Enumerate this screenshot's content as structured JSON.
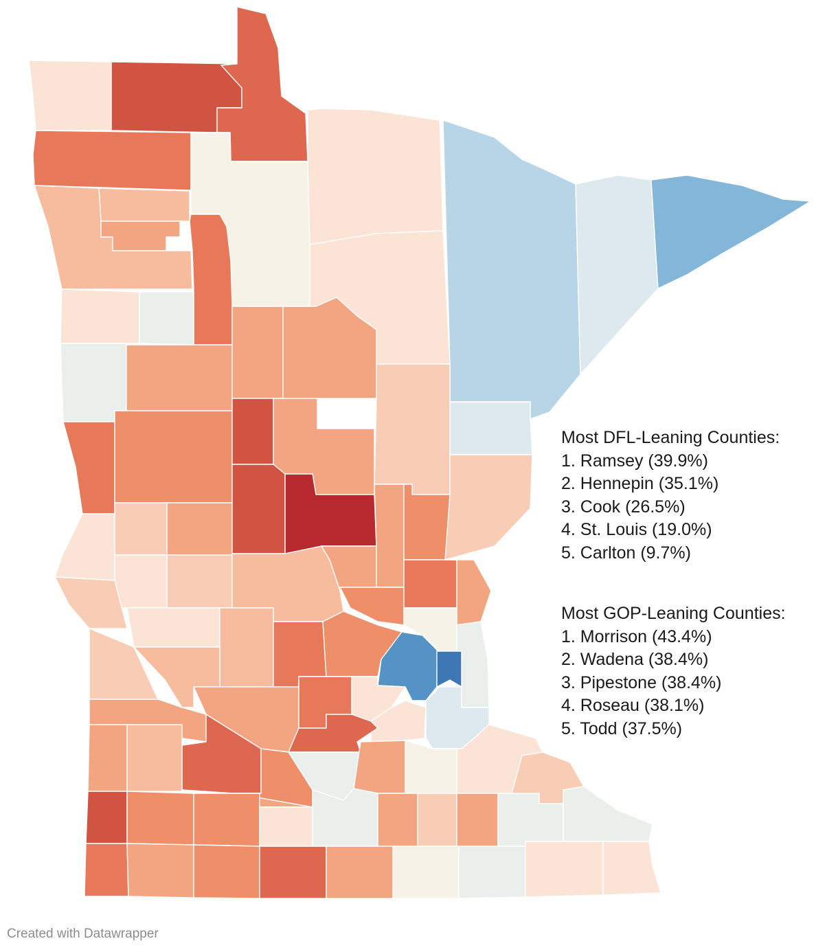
{
  "colors": {
    "dfl_strong": "#3d78b5",
    "dfl_medium": "#5592c6",
    "dfl_mid": "#83b6d9",
    "dfl_light": "#b7d5e7",
    "dfl_faint": "#dde9ef",
    "neutral_gray": "#ebefec",
    "neutral_cream": "#f7f2e8",
    "gop_faint": "#fbe3d5",
    "gop_light": "#f9cdb5",
    "gop_light2": "#f7bb9e",
    "gop_mid": "#f3a582",
    "gop_mid2": "#ee8f69",
    "gop_strong": "#e7785a",
    "gop_stronger": "#dd684f",
    "gop_darker": "#d15442",
    "gop_darkest": "#b8282f"
  },
  "dfl_panel": {
    "title": "Most DFL-Leaning Counties:",
    "items": [
      "1. Ramsey (39.9%)",
      "2. Hennepin (35.1%)",
      "3. Cook (26.5%)",
      "4. St. Louis (19.0%)",
      "5. Carlton (9.7%)"
    ]
  },
  "gop_panel": {
    "title": "Most GOP-Leaning Counties:",
    "items": [
      "1. Morrison (43.4%)",
      "2. Wadena (38.4%)",
      "3. Pipestone (38.4%)",
      "4. Roseau (38.1%)",
      "5. Todd (37.5%)"
    ]
  },
  "credit": "Created with Datawrapper"
}
